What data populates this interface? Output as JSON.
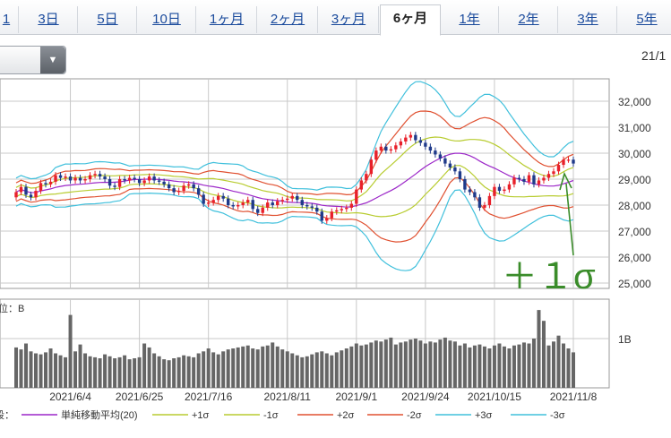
{
  "tabs": [
    {
      "label": "1",
      "active": false
    },
    {
      "label": "3日",
      "active": false
    },
    {
      "label": "5日",
      "active": false
    },
    {
      "label": "10日",
      "active": false
    },
    {
      "label": "1ヶ月",
      "active": false
    },
    {
      "label": "2ヶ月",
      "active": false
    },
    {
      "label": "3ヶ月",
      "active": false
    },
    {
      "label": "6ヶ月",
      "active": true
    },
    {
      "label": "1年",
      "active": false
    },
    {
      "label": "2年",
      "active": false
    },
    {
      "label": "3年",
      "active": false
    },
    {
      "label": "5年",
      "active": false
    }
  ],
  "date_corner": "21/1",
  "annotation": "＋１σ",
  "colors": {
    "up": "#e8202a",
    "down": "#1f3a8a",
    "sma": "#9c27c8",
    "s1": "#b8cc30",
    "s2": "#e05030",
    "s3": "#40c0dc",
    "vol": "#666666",
    "grid": "#c8c8c8",
    "arrow": "#3a8c2a"
  },
  "chart_data": {
    "type": "candlestick",
    "price_ylim": [
      25000,
      32500
    ],
    "price_ticks": [
      "32,000",
      "31,000",
      "30,000",
      "29,000",
      "28,000",
      "27,000",
      "26,000",
      "25,000"
    ],
    "price_tick_values": [
      32000,
      31000,
      30000,
      29000,
      28000,
      27000,
      26000,
      25000
    ],
    "x_labels": [
      "2021/6/4",
      "2021/6/25",
      "2021/7/16",
      "2021/8/11",
      "2021/9/1",
      "2021/9/24",
      "2021/10/15",
      "2021/11/8"
    ],
    "x_label_index": [
      11,
      25,
      39,
      55,
      69,
      83,
      97,
      113
    ],
    "volume_label": "位：B",
    "volume_ylim": [
      0,
      1.8
    ],
    "volume_tick": "1B",
    "volume_tick_value": 1.0,
    "close": [
      28500,
      28700,
      28400,
      28300,
      28550,
      28850,
      28800,
      28900,
      29150,
      29050,
      29100,
      28950,
      29050,
      28950,
      29000,
      29150,
      29200,
      29100,
      29000,
      28750,
      28700,
      29000,
      28950,
      29050,
      29000,
      28850,
      28950,
      29100,
      28950,
      28900,
      28800,
      28650,
      28500,
      28550,
      28750,
      28800,
      28650,
      28400,
      28050,
      28100,
      28200,
      28350,
      28250,
      28000,
      27950,
      28000,
      28100,
      28200,
      27850,
      27700,
      27900,
      28100,
      28000,
      28150,
      28200,
      28250,
      28350,
      28200,
      28000,
      27950,
      27900,
      27750,
      27400,
      27500,
      27750,
      27800,
      27850,
      27900,
      28050,
      28600,
      28950,
      29200,
      29750,
      30100,
      30250,
      30100,
      30150,
      30300,
      30450,
      30600,
      30700,
      30500,
      30400,
      30250,
      30100,
      29950,
      29800,
      29600,
      29450,
      29300,
      29000,
      28600,
      28500,
      28300,
      27900,
      28000,
      28350,
      28700,
      28550,
      28600,
      28800,
      29050,
      29000,
      28900,
      29150,
      28800,
      28950,
      29050,
      29200,
      29300,
      29550,
      29750,
      29750,
      29600
    ],
    "open": [
      28300,
      28500,
      28700,
      28400,
      28300,
      28550,
      28850,
      28800,
      28900,
      29150,
      29050,
      29100,
      28950,
      29050,
      28950,
      29000,
      29150,
      29200,
      29100,
      29000,
      28750,
      28700,
      29000,
      28950,
      29050,
      29000,
      28850,
      28950,
      29100,
      28950,
      28900,
      28800,
      28650,
      28500,
      28550,
      28750,
      28800,
      28650,
      28400,
      28050,
      28100,
      28200,
      28350,
      28250,
      28000,
      27950,
      28000,
      28100,
      28200,
      27850,
      27700,
      27900,
      28100,
      28000,
      28150,
      28200,
      28250,
      28350,
      28200,
      28000,
      27950,
      27900,
      27750,
      27400,
      27500,
      27750,
      27800,
      27850,
      27900,
      28050,
      28600,
      28950,
      29200,
      29750,
      30100,
      30250,
      30100,
      30150,
      30300,
      30450,
      30600,
      30700,
      30500,
      30400,
      30250,
      30100,
      29950,
      29800,
      29600,
      29450,
      29300,
      29000,
      28600,
      28500,
      28300,
      27900,
      28000,
      28350,
      28700,
      28550,
      28600,
      28800,
      29050,
      29000,
      28900,
      29150,
      28800,
      28950,
      29050,
      29200,
      29300,
      29550,
      29750,
      29750
    ],
    "volume": [
      0.82,
      0.78,
      0.9,
      0.74,
      0.7,
      0.68,
      0.72,
      0.8,
      0.7,
      0.66,
      0.62,
      1.48,
      0.74,
      0.88,
      0.7,
      0.64,
      0.62,
      0.6,
      0.68,
      0.64,
      0.6,
      0.62,
      0.66,
      0.58,
      0.6,
      0.62,
      0.9,
      0.82,
      0.7,
      0.64,
      0.58,
      0.56,
      0.6,
      0.62,
      0.66,
      0.64,
      0.62,
      0.7,
      0.74,
      0.8,
      0.72,
      0.68,
      0.74,
      0.78,
      0.8,
      0.82,
      0.84,
      0.86,
      0.8,
      0.78,
      0.84,
      0.86,
      0.92,
      0.84,
      0.78,
      0.74,
      0.7,
      0.66,
      0.62,
      0.64,
      0.68,
      0.72,
      0.74,
      0.7,
      0.66,
      0.72,
      0.76,
      0.8,
      0.84,
      0.9,
      0.86,
      0.88,
      0.92,
      0.96,
      0.94,
      0.98,
      1.02,
      0.88,
      0.92,
      0.94,
      0.98,
      1.0,
      0.96,
      0.9,
      0.94,
      0.92,
      0.98,
      1.02,
      0.96,
      0.94,
      0.86,
      0.9,
      0.82,
      0.86,
      0.88,
      0.84,
      0.8,
      0.86,
      0.9,
      0.84,
      0.8,
      0.86,
      0.88,
      0.92,
      0.9,
      1.0,
      1.58,
      1.36,
      0.86,
      0.94,
      1.06,
      0.9,
      0.8,
      0.72
    ],
    "legend": [
      {
        "name": "単純移動平均(20)",
        "color_key": "sma"
      },
      {
        "name": "+1σ",
        "color_key": "s1"
      },
      {
        "name": "-1σ",
        "color_key": "s1"
      },
      {
        "name": "+2σ",
        "color_key": "s2"
      },
      {
        "name": "-2σ",
        "color_key": "s2"
      },
      {
        "name": "+3σ",
        "color_key": "s3"
      },
      {
        "name": "-3σ",
        "color_key": "s3"
      }
    ],
    "legend_prefix": "段："
  }
}
